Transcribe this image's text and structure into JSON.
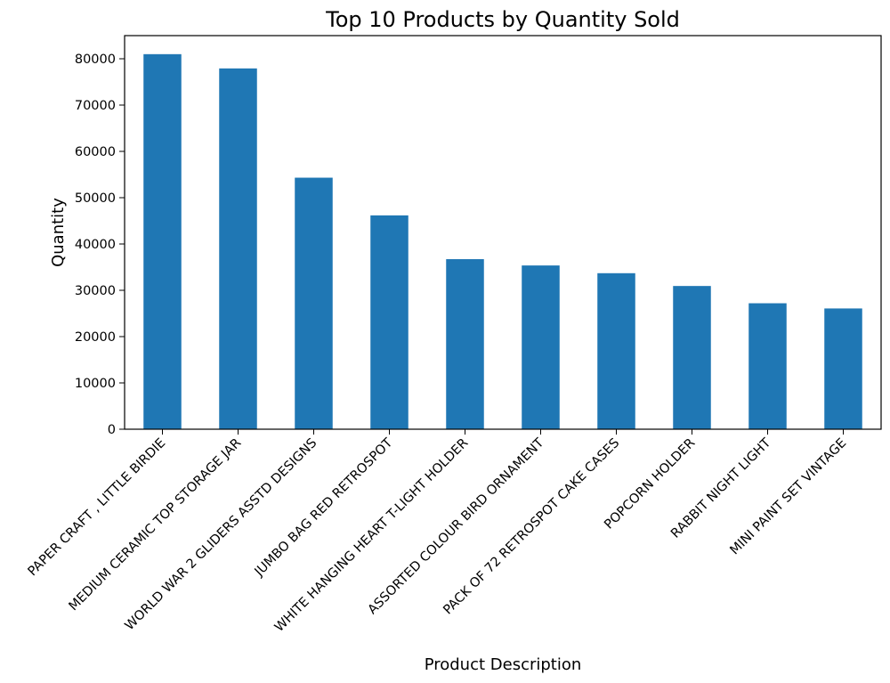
{
  "chart_data": {
    "type": "bar",
    "title": "Top 10 Products by Quantity Sold",
    "xlabel": "Product Description",
    "ylabel": "Quantity",
    "categories": [
      "PAPER CRAFT , LITTLE BIRDIE",
      "MEDIUM CERAMIC TOP STORAGE JAR",
      "WORLD WAR 2 GLIDERS ASSTD DESIGNS",
      "JUMBO BAG RED RETROSPOT",
      "WHITE HANGING HEART T-LIGHT HOLDER",
      "ASSORTED COLOUR BIRD ORNAMENT",
      "PACK OF 72 RETROSPOT CAKE CASES",
      "POPCORN HOLDER",
      "RABBIT NIGHT LIGHT",
      "MINI PAINT SET VINTAGE"
    ],
    "values": [
      80995,
      77916,
      54319,
      46181,
      36725,
      35362,
      33693,
      30931,
      27202,
      26076
    ],
    "ylim": [
      0,
      85000
    ],
    "yticks": [
      0,
      10000,
      20000,
      30000,
      40000,
      50000,
      60000,
      70000,
      80000
    ],
    "grid": false,
    "legend": "none",
    "bar_color": "#1f77b4"
  }
}
